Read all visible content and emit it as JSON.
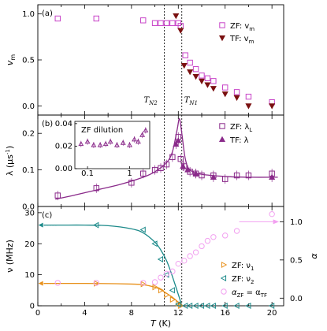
{
  "colors": {
    "zf_magenta": "#c844c8",
    "tf_darkred": "#7a1010",
    "lambda_purple": "#8a2a8a",
    "nu1_orange": "#e8901a",
    "nu2_teal": "#1c8a8a",
    "alpha_pink": "#f2a0f0"
  },
  "chart_data": [
    {
      "id": "a",
      "type": "scatter",
      "panel_label": "(a)",
      "ylabel": "v_m",
      "xlim": [
        0,
        21
      ],
      "ylim": [
        -0.1,
        1.1
      ],
      "yticks": [
        0.0,
        0.5,
        1.0
      ],
      "annotations": [
        "T_N2",
        "T_N1"
      ],
      "legend_position": "top-right",
      "series": [
        {
          "name": "ZF: v_m",
          "marker": "square-open",
          "x": [
            1.7,
            5.0,
            9.0,
            10.0,
            10.5,
            11.0,
            11.5,
            12.0,
            12.2,
            12.6,
            13.0,
            13.5,
            14.0,
            14.5,
            15.0,
            16.0,
            17.0,
            18.0,
            20.0
          ],
          "y": [
            0.95,
            0.95,
            0.93,
            0.9,
            0.9,
            0.9,
            0.9,
            0.9,
            0.87,
            0.55,
            0.47,
            0.4,
            0.33,
            0.3,
            0.27,
            0.2,
            0.15,
            0.1,
            0.04
          ]
        },
        {
          "name": "TF: v_m",
          "marker": "triangle-down-filled",
          "x": [
            11.8,
            12.2,
            12.5,
            13.0,
            13.5,
            14.0,
            14.5,
            15.0,
            16.0,
            17.0,
            18.0,
            20.0
          ],
          "y": [
            0.98,
            0.82,
            0.44,
            0.37,
            0.32,
            0.27,
            0.23,
            0.19,
            0.13,
            0.09,
            0.0,
            0.0
          ]
        }
      ],
      "vlines": [
        10.8,
        12.3
      ]
    },
    {
      "id": "b",
      "type": "scatter",
      "panel_label": "(b)",
      "ylabel": "λ (μs⁻¹)",
      "xlim": [
        0,
        21
      ],
      "ylim": [
        0.0,
        0.25
      ],
      "yticks": [
        0.0,
        0.1,
        0.2
      ],
      "legend_position": "right",
      "series": [
        {
          "name": "ZF: λ_L",
          "marker": "square-open",
          "x": [
            1.7,
            5.0,
            8.0,
            9.0,
            10.0,
            10.5,
            11.0,
            11.5,
            12.0,
            12.2,
            12.5,
            13.0,
            13.5,
            14.0,
            15.0,
            16.0,
            17.0,
            18.0,
            20.0
          ],
          "y": [
            0.03,
            0.05,
            0.065,
            0.09,
            0.1,
            0.105,
            0.115,
            0.135,
            0.19,
            0.13,
            0.11,
            0.095,
            0.09,
            0.085,
            0.085,
            0.075,
            0.085,
            0.085,
            0.09
          ]
        },
        {
          "name": "TF: λ",
          "marker": "triangle-up-filled",
          "x": [
            11.8,
            12.0,
            12.4,
            12.8,
            13.5,
            15.0,
            20.0
          ],
          "y": [
            0.17,
            0.18,
            0.11,
            0.1,
            0.09,
            0.08,
            0.08
          ]
        }
      ],
      "fit": {
        "x": [
          1.5,
          3,
          5,
          7,
          9,
          10,
          11,
          11.5,
          11.9,
          12.1,
          12.3,
          12.6,
          13,
          14,
          16,
          18,
          20.5
        ],
        "y": [
          0.02,
          0.03,
          0.045,
          0.06,
          0.08,
          0.095,
          0.12,
          0.15,
          0.21,
          0.24,
          0.2,
          0.13,
          0.1,
          0.088,
          0.082,
          0.08,
          0.08
        ]
      },
      "vlines": [
        10.8,
        12.3
      ],
      "inset": {
        "title": "ZF dilution",
        "xscale": "log",
        "xlim": [
          0.05,
          3
        ],
        "ylim": [
          0.0,
          0.042
        ],
        "yticks": [
          0.0,
          0.02,
          0.04
        ],
        "yticklabels": [
          "0.00",
          "0.02",
          "0.04"
        ],
        "xticks": [
          0.1,
          1
        ],
        "xticklabels": [
          "0.1",
          "1"
        ],
        "x": [
          0.07,
          0.1,
          0.14,
          0.2,
          0.27,
          0.35,
          0.5,
          0.7,
          1.0,
          1.3,
          1.6,
          2.0,
          2.4
        ],
        "y": [
          0.022,
          0.024,
          0.021,
          0.021,
          0.022,
          0.024,
          0.021,
          0.023,
          0.021,
          0.026,
          0.024,
          0.03,
          0.034
        ]
      }
    },
    {
      "id": "c",
      "type": "scatter",
      "panel_label": "(c)",
      "xlabel": "T (K)",
      "ylabel": "ν (MHz)",
      "ylabel_right": "α",
      "xlim": [
        0,
        21
      ],
      "xticks": [
        0,
        4,
        8,
        12,
        16,
        20
      ],
      "ylim": [
        0,
        32
      ],
      "yticks": [
        0,
        10,
        20,
        30
      ],
      "ylim_right": [
        -0.1,
        1.2
      ],
      "yticks_right": [
        0.0,
        0.5,
        1.0
      ],
      "legend_position": "bottom-right",
      "series": [
        {
          "name": "ZF: ν_1",
          "marker": "triangle-right-open",
          "x": [
            5.0,
            9.0,
            10.0,
            10.5,
            11.0,
            11.5,
            12.0,
            12.2
          ],
          "y": [
            7.2,
            7.0,
            6.0,
            5.0,
            3.5,
            2.0,
            0.8,
            0.0
          ]
        },
        {
          "name": "ZF: ν_2",
          "marker": "triangle-left-open",
          "x": [
            5.0,
            9.0,
            10.0,
            10.5,
            11.0,
            11.5,
            12.0,
            12.6,
            13.0,
            13.5,
            14.0,
            14.5,
            15.0,
            16.0,
            17.0,
            18.0,
            20.0
          ],
          "y": [
            26.0,
            24.5,
            20.0,
            15.0,
            10.0,
            5.0,
            0.5,
            0.0,
            0.0,
            0.0,
            0.0,
            0.0,
            0.0,
            0.0,
            0.0,
            0.0,
            0.0
          ]
        },
        {
          "name": "α_ZF = α_TF",
          "marker": "circle-open",
          "axis": "right",
          "x": [
            1.7,
            5.0,
            9.0,
            10.0,
            10.5,
            11.0,
            11.5,
            12.0,
            12.5,
            13.0,
            13.5,
            14.0,
            14.5,
            15.0,
            16.0,
            17.0,
            20.0
          ],
          "y": [
            0.2,
            0.2,
            0.2,
            0.21,
            0.27,
            0.32,
            0.35,
            0.45,
            0.49,
            0.55,
            0.6,
            0.68,
            0.75,
            0.8,
            0.82,
            0.88,
            1.1
          ]
        }
      ],
      "fits": [
        {
          "series": "ZF: ν_1",
          "x": [
            0.5,
            2,
            4,
            6,
            8,
            9,
            10,
            10.5,
            11,
            11.4,
            11.8,
            12.1,
            12.3
          ],
          "y": [
            7.2,
            7.2,
            7.2,
            7.15,
            7.0,
            6.8,
            6.0,
            5.2,
            4.0,
            3.0,
            1.8,
            0.8,
            0.0
          ]
        },
        {
          "series": "ZF: ν_2",
          "x": [
            0.5,
            2,
            4,
            6,
            8,
            9,
            10,
            10.5,
            11,
            11.4,
            11.8,
            12.1,
            12.3
          ],
          "y": [
            26.0,
            26.0,
            26.0,
            25.8,
            24.8,
            23.5,
            20.5,
            18.0,
            14.5,
            10.5,
            6.0,
            2.5,
            0.0
          ]
        }
      ],
      "vlines": [
        10.8,
        12.3
      ]
    }
  ],
  "legend": {
    "a": [
      "ZF: v",
      "m",
      "TF: v",
      "m"
    ],
    "b": [
      "ZF: λ",
      "L",
      "TF: λ"
    ],
    "c": [
      "ZF: ν",
      "1",
      "ZF: ν",
      "2",
      "α",
      "ZF",
      " = α",
      "TF"
    ]
  },
  "labels": {
    "a_ylabel_main": "v",
    "a_ylabel_sub": "m",
    "b_ylabel": "λ (μs",
    "b_ylabel_sup": "-1",
    "b_ylabel_end": ")",
    "c_ylabel": "ν (MHz)",
    "c_ylabel_right": "α",
    "xlabel_T": "T",
    "xlabel_unit": " (K)",
    "tn2_main": "T",
    "tn2_sub": "N2",
    "tn1_main": "T",
    "tn1_sub": "N1",
    "inset_title": "ZF dilution"
  }
}
